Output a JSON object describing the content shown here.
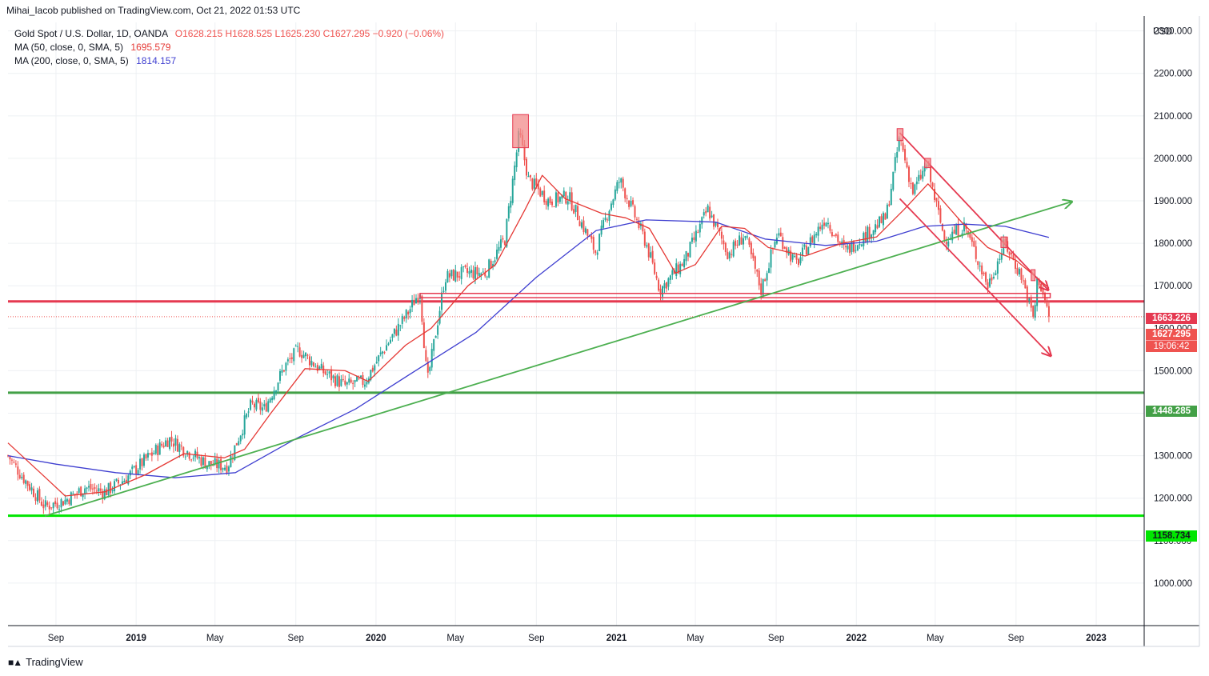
{
  "header": {
    "publisher": "Mihai_Iacob published on TradingView.com, Oct 21, 2022 01:53 UTC"
  },
  "legend": {
    "symbol": "Gold Spot / U.S. Dollar, 1D, OANDA",
    "ohlc": "O1628.215  H1628.525  L1625.230  C1627.295  −0.920 (−0.06%)",
    "ma50_label": "MA (50, close, 0, SMA, 5)",
    "ma50_value": "1695.579",
    "ma200_label": "MA (200, close, 0, SMA, 5)",
    "ma200_value": "1814.157"
  },
  "price_axis": {
    "currency": "USD",
    "ticks": [
      "2300.000",
      "2200.000",
      "2100.000",
      "2000.000",
      "1900.000",
      "1800.000",
      "1700.000",
      "1600.000",
      "1500.000",
      "1400.000",
      "1300.000",
      "1200.000",
      "1100.000",
      "1000.000"
    ],
    "tags": {
      "resistance": "1663.226",
      "last": "1627.295",
      "countdown": "19:06:42",
      "support_mid": "1448.285",
      "support_low": "1158.734"
    }
  },
  "time_axis": {
    "ticks": [
      {
        "label": "Sep",
        "bold": false
      },
      {
        "label": "2019",
        "bold": true
      },
      {
        "label": "May",
        "bold": false
      },
      {
        "label": "Sep",
        "bold": false
      },
      {
        "label": "2020",
        "bold": true
      },
      {
        "label": "May",
        "bold": false
      },
      {
        "label": "Sep",
        "bold": false
      },
      {
        "label": "2021",
        "bold": true
      },
      {
        "label": "May",
        "bold": false
      },
      {
        "label": "Sep",
        "bold": false
      },
      {
        "label": "2022",
        "bold": true
      },
      {
        "label": "May",
        "bold": false
      },
      {
        "label": "Sep",
        "bold": false
      },
      {
        "label": "2023",
        "bold": true
      }
    ]
  },
  "footer": {
    "brand": "TradingView",
    "logo_icon": "tradingview-logo-icon"
  },
  "colors": {
    "up": "#26a69a",
    "down": "#ef5350",
    "ma50": "#e53935",
    "ma200": "#3f3fd0",
    "trend": "#4caf50",
    "resistance": "#e53950",
    "support_mid": "#43a047",
    "support_low": "#00e600",
    "box_fill": "#f28b8b",
    "grid": "#eef0f3"
  },
  "chart_data": {
    "type": "candlestick",
    "symbol": "XAUUSD",
    "interval": "1D",
    "ylim": [
      900,
      2320
    ],
    "close_path": [
      {
        "x": "2018-06-20",
        "y": 1300
      },
      {
        "x": "2018-07-10",
        "y": 1255
      },
      {
        "x": "2018-08-15",
        "y": 1180
      },
      {
        "x": "2018-09-15",
        "y": 1195
      },
      {
        "x": "2018-10-15",
        "y": 1225
      },
      {
        "x": "2018-11-15",
        "y": 1215
      },
      {
        "x": "2018-12-15",
        "y": 1245
      },
      {
        "x": "2019-01-15",
        "y": 1290
      },
      {
        "x": "2019-02-20",
        "y": 1340
      },
      {
        "x": "2019-03-20",
        "y": 1310
      },
      {
        "x": "2019-04-20",
        "y": 1280
      },
      {
        "x": "2019-05-20",
        "y": 1275
      },
      {
        "x": "2019-06-25",
        "y": 1420
      },
      {
        "x": "2019-07-15",
        "y": 1410
      },
      {
        "x": "2019-08-15",
        "y": 1510
      },
      {
        "x": "2019-09-05",
        "y": 1550
      },
      {
        "x": "2019-10-10",
        "y": 1500
      },
      {
        "x": "2019-11-15",
        "y": 1465
      },
      {
        "x": "2019-12-15",
        "y": 1475
      },
      {
        "x": "2020-01-15",
        "y": 1555
      },
      {
        "x": "2020-02-20",
        "y": 1640
      },
      {
        "x": "2020-03-08",
        "y": 1690
      },
      {
        "x": "2020-03-19",
        "y": 1470
      },
      {
        "x": "2020-04-15",
        "y": 1720
      },
      {
        "x": "2020-05-15",
        "y": 1730
      },
      {
        "x": "2020-06-15",
        "y": 1730
      },
      {
        "x": "2020-07-15",
        "y": 1810
      },
      {
        "x": "2020-08-06",
        "y": 2060
      },
      {
        "x": "2020-08-20",
        "y": 1950
      },
      {
        "x": "2020-09-20",
        "y": 1900
      },
      {
        "x": "2020-10-20",
        "y": 1910
      },
      {
        "x": "2020-11-30",
        "y": 1780
      },
      {
        "x": "2020-12-20",
        "y": 1880
      },
      {
        "x": "2021-01-06",
        "y": 1950
      },
      {
        "x": "2021-02-15",
        "y": 1800
      },
      {
        "x": "2021-03-08",
        "y": 1690
      },
      {
        "x": "2021-04-15",
        "y": 1760
      },
      {
        "x": "2021-05-20",
        "y": 1880
      },
      {
        "x": "2021-06-20",
        "y": 1775
      },
      {
        "x": "2021-07-15",
        "y": 1820
      },
      {
        "x": "2021-08-09",
        "y": 1690
      },
      {
        "x": "2021-09-03",
        "y": 1825
      },
      {
        "x": "2021-10-01",
        "y": 1750
      },
      {
        "x": "2021-11-15",
        "y": 1860
      },
      {
        "x": "2021-12-15",
        "y": 1780
      },
      {
        "x": "2022-01-15",
        "y": 1820
      },
      {
        "x": "2022-02-15",
        "y": 1860
      },
      {
        "x": "2022-03-08",
        "y": 2050
      },
      {
        "x": "2022-03-28",
        "y": 1920
      },
      {
        "x": "2022-04-18",
        "y": 1985
      },
      {
        "x": "2022-05-15",
        "y": 1810
      },
      {
        "x": "2022-06-15",
        "y": 1840
      },
      {
        "x": "2022-07-20",
        "y": 1700
      },
      {
        "x": "2022-08-15",
        "y": 1800
      },
      {
        "x": "2022-09-10",
        "y": 1720
      },
      {
        "x": "2022-09-28",
        "y": 1620
      },
      {
        "x": "2022-10-04",
        "y": 1725
      },
      {
        "x": "2022-10-21",
        "y": 1627
      }
    ],
    "ma50_path": [
      {
        "x": "2018-06-20",
        "y": 1330
      },
      {
        "x": "2018-08-15",
        "y": 1250
      },
      {
        "x": "2018-09-15",
        "y": 1205
      },
      {
        "x": "2018-11-15",
        "y": 1215
      },
      {
        "x": "2019-01-15",
        "y": 1255
      },
      {
        "x": "2019-03-15",
        "y": 1305
      },
      {
        "x": "2019-05-15",
        "y": 1295
      },
      {
        "x": "2019-06-15",
        "y": 1315
      },
      {
        "x": "2019-07-25",
        "y": 1400
      },
      {
        "x": "2019-09-15",
        "y": 1505
      },
      {
        "x": "2019-11-15",
        "y": 1500
      },
      {
        "x": "2019-12-20",
        "y": 1475
      },
      {
        "x": "2020-02-15",
        "y": 1560
      },
      {
        "x": "2020-03-25",
        "y": 1600
      },
      {
        "x": "2020-05-20",
        "y": 1700
      },
      {
        "x": "2020-07-01",
        "y": 1750
      },
      {
        "x": "2020-08-15",
        "y": 1880
      },
      {
        "x": "2020-09-10",
        "y": 1960
      },
      {
        "x": "2020-10-15",
        "y": 1905
      },
      {
        "x": "2020-12-10",
        "y": 1870
      },
      {
        "x": "2021-01-15",
        "y": 1860
      },
      {
        "x": "2021-02-20",
        "y": 1835
      },
      {
        "x": "2021-04-01",
        "y": 1730
      },
      {
        "x": "2021-05-01",
        "y": 1750
      },
      {
        "x": "2021-06-10",
        "y": 1840
      },
      {
        "x": "2021-07-15",
        "y": 1835
      },
      {
        "x": "2021-08-20",
        "y": 1790
      },
      {
        "x": "2021-10-15",
        "y": 1770
      },
      {
        "x": "2021-12-10",
        "y": 1800
      },
      {
        "x": "2022-02-01",
        "y": 1815
      },
      {
        "x": "2022-03-15",
        "y": 1880
      },
      {
        "x": "2022-04-20",
        "y": 1940
      },
      {
        "x": "2022-06-10",
        "y": 1850
      },
      {
        "x": "2022-07-20",
        "y": 1790
      },
      {
        "x": "2022-09-01",
        "y": 1760
      },
      {
        "x": "2022-10-21",
        "y": 1695
      }
    ],
    "ma200_path": [
      {
        "x": "2018-06-20",
        "y": 1300
      },
      {
        "x": "2018-09-01",
        "y": 1280
      },
      {
        "x": "2018-12-01",
        "y": 1260
      },
      {
        "x": "2019-03-01",
        "y": 1248
      },
      {
        "x": "2019-06-01",
        "y": 1260
      },
      {
        "x": "2019-09-01",
        "y": 1340
      },
      {
        "x": "2019-12-01",
        "y": 1410
      },
      {
        "x": "2020-03-01",
        "y": 1500
      },
      {
        "x": "2020-06-01",
        "y": 1590
      },
      {
        "x": "2020-09-01",
        "y": 1720
      },
      {
        "x": "2020-12-01",
        "y": 1830
      },
      {
        "x": "2021-02-15",
        "y": 1855
      },
      {
        "x": "2021-06-01",
        "y": 1850
      },
      {
        "x": "2021-08-15",
        "y": 1810
      },
      {
        "x": "2021-11-15",
        "y": 1795
      },
      {
        "x": "2022-02-01",
        "y": 1805
      },
      {
        "x": "2022-04-15",
        "y": 1840
      },
      {
        "x": "2022-06-15",
        "y": 1845
      },
      {
        "x": "2022-08-15",
        "y": 1840
      },
      {
        "x": "2022-10-21",
        "y": 1814
      }
    ],
    "horizontal_levels": [
      {
        "name": "resistance",
        "y": 1663.226
      },
      {
        "name": "support_mid",
        "y": 1448.285
      },
      {
        "name": "support_low",
        "y": 1158.734
      }
    ],
    "range_band": {
      "x_start": "2020-03-08",
      "x_end": "2022-10-23",
      "y_top": 1682,
      "y_bottom": 1672
    },
    "long_trendline": {
      "x1": "2018-08-15",
      "y1": 1158,
      "x2": "2022-11-25",
      "y2": 1898
    },
    "down_channel": [
      {
        "x1": "2022-03-08",
        "y1": 2060,
        "x2": "2022-10-20",
        "y2": 1690
      },
      {
        "x1": "2022-03-08",
        "y1": 1905,
        "x2": "2022-10-24",
        "y2": 1535
      }
    ],
    "highlight_boxes": [
      {
        "x_start": "2020-07-27",
        "x_end": "2020-08-20",
        "y_top": 2103,
        "y_bottom": 2025
      },
      {
        "x_start": "2022-03-04",
        "x_end": "2022-03-13",
        "y_top": 2070,
        "y_bottom": 2042
      },
      {
        "x_start": "2022-04-15",
        "x_end": "2022-04-24",
        "y_top": 2000,
        "y_bottom": 1978
      },
      {
        "x_start": "2022-08-09",
        "x_end": "2022-08-18",
        "y_top": 1815,
        "y_bottom": 1790
      },
      {
        "x_start": "2022-09-24",
        "x_end": "2022-09-30",
        "y_top": 1738,
        "y_bottom": 1712
      }
    ]
  }
}
